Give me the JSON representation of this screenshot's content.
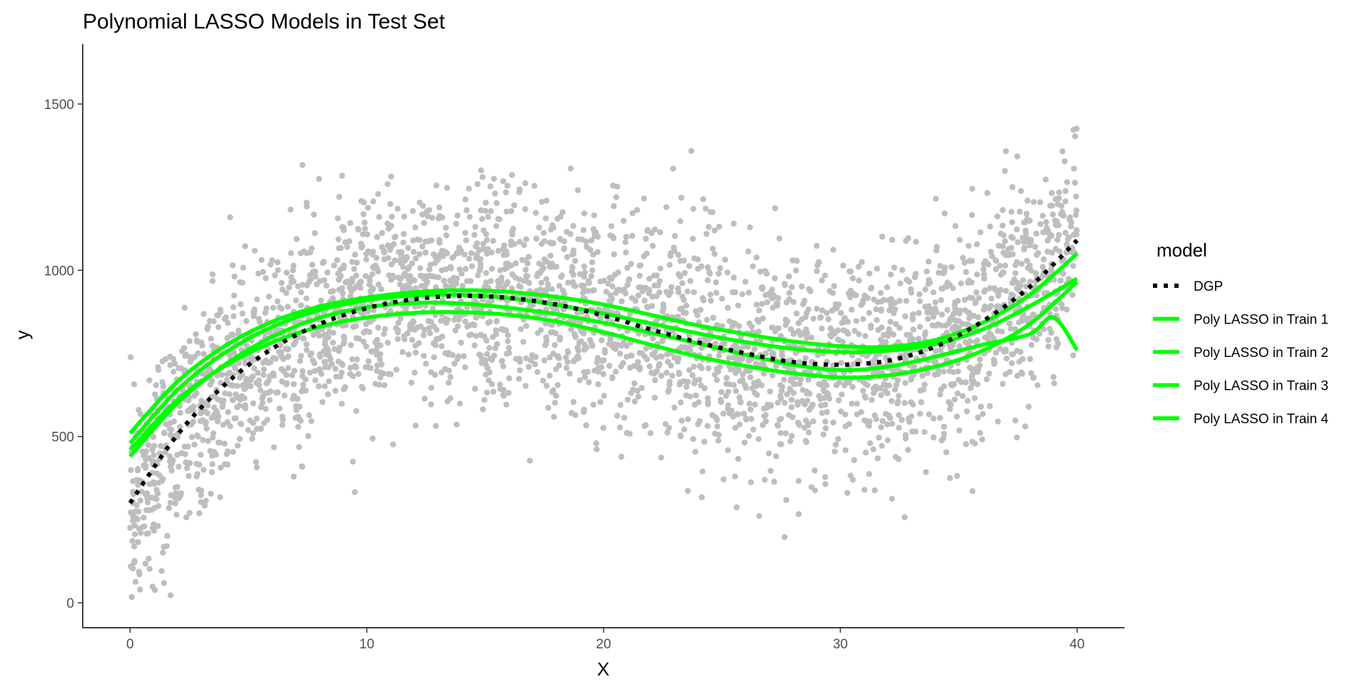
{
  "chart_data": {
    "type": "scatter",
    "title": "Polynomial LASSO Models in Test Set",
    "xlabel": "X",
    "ylabel": "y",
    "xlim": [
      -2,
      42
    ],
    "ylim": [
      -75,
      1680
    ],
    "x_ticks": [
      0,
      10,
      20,
      30,
      40
    ],
    "y_ticks": [
      0,
      500,
      1000,
      1500
    ],
    "x_tick_labels": [
      "0",
      "10",
      "20",
      "30",
      "40"
    ],
    "y_tick_labels": [
      "0",
      "500",
      "1000",
      "1500"
    ],
    "grid": false,
    "legend": {
      "title": "model",
      "placement": "right",
      "entries": [
        {
          "label": "DGP",
          "color": "#000000",
          "style": "dotted"
        },
        {
          "label": "Poly LASSO in Train 1",
          "color": "#00ff00",
          "style": "solid"
        },
        {
          "label": "Poly LASSO in Train 2",
          "color": "#00ff00",
          "style": "solid"
        },
        {
          "label": "Poly LASSO in Train 3",
          "color": "#00ff00",
          "style": "solid"
        },
        {
          "label": "Poly LASSO in Train 4",
          "color": "#00ff00",
          "style": "solid"
        }
      ]
    },
    "scatter_color": "#bebebe",
    "scatter_x_range": [
      0,
      40
    ],
    "scatter_n": 3400,
    "scatter_noise_sd": 160,
    "series": [
      {
        "name": "DGP",
        "color": "#000000",
        "style": "dotted",
        "x": [
          0,
          2,
          4,
          6,
          8,
          10,
          12,
          14,
          16,
          18,
          20,
          22,
          24,
          26,
          28,
          30,
          32,
          34,
          36,
          38,
          40
        ],
        "y": [
          300,
          505,
          656,
          764,
          838,
          886,
          913,
          923,
          917,
          897,
          864,
          822,
          783,
          750,
          724,
          716,
          728,
          770,
          846,
          950,
          1090
        ]
      },
      {
        "name": "Poly LASSO in Train 1",
        "color": "#00ff00",
        "style": "solid",
        "x": [
          0,
          2,
          4,
          6,
          8,
          10,
          12,
          14,
          16,
          18,
          20,
          22,
          24,
          26,
          28,
          30,
          32,
          34,
          36,
          38,
          39,
          40
        ],
        "y": [
          440,
          600,
          716,
          800,
          857,
          889,
          902,
          900,
          887,
          868,
          842,
          812,
          780,
          746,
          716,
          700,
          710,
          740,
          776,
          808,
          858,
          760
        ]
      },
      {
        "name": "Poly LASSO in Train 2",
        "color": "#00ff00",
        "style": "solid",
        "x": [
          0,
          2,
          4,
          6,
          8,
          10,
          12,
          14,
          16,
          18,
          20,
          22,
          24,
          26,
          28,
          30,
          32,
          34,
          36,
          38,
          40
        ],
        "y": [
          480,
          640,
          752,
          830,
          880,
          910,
          924,
          926,
          916,
          896,
          870,
          840,
          810,
          784,
          764,
          754,
          758,
          778,
          822,
          892,
          975
        ]
      },
      {
        "name": "Poly LASSO in Train 3",
        "color": "#00ff00",
        "style": "solid",
        "x": [
          0,
          2,
          4,
          6,
          8,
          10,
          12,
          14,
          16,
          18,
          20,
          22,
          24,
          26,
          28,
          30,
          32,
          34,
          36,
          38,
          40
        ],
        "y": [
          510,
          665,
          772,
          845,
          891,
          918,
          934,
          940,
          935,
          920,
          897,
          866,
          834,
          808,
          786,
          772,
          770,
          790,
          842,
          926,
          1050
        ]
      },
      {
        "name": "Poly LASSO in Train 4",
        "color": "#00ff00",
        "style": "solid",
        "x": [
          0,
          2,
          4,
          6,
          8,
          10,
          12,
          14,
          16,
          18,
          20,
          22,
          24,
          26,
          28,
          30,
          32,
          34,
          36,
          38,
          40
        ],
        "y": [
          460,
          610,
          712,
          783,
          830,
          858,
          872,
          874,
          866,
          846,
          814,
          776,
          740,
          712,
          690,
          678,
          684,
          710,
          758,
          838,
          965
        ]
      }
    ]
  }
}
